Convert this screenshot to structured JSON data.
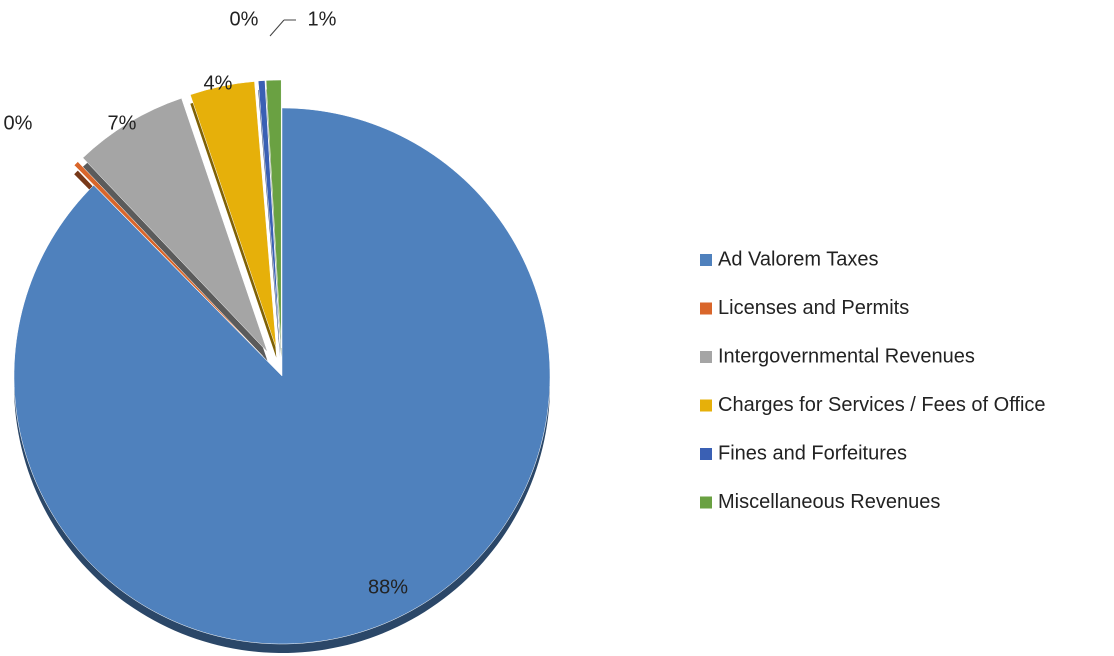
{
  "chart_data": {
    "type": "pie",
    "categories": [
      "Ad Valorem Taxes",
      "Licenses and Permits",
      "Intergovernmental Revenues",
      "Charges for Services / Fees of Office",
      "Fines and Forfeitures",
      "Miscellaneous Revenues"
    ],
    "values": [
      87.6,
      0.3,
      6.9,
      3.9,
      0.4,
      0.9
    ],
    "value_labels": [
      "88%",
      "0%",
      "7%",
      "4%",
      "0%",
      "1%"
    ],
    "colors": [
      "#4f81bd",
      "#d9662b",
      "#a5a5a5",
      "#e6b00a",
      "#3a60b4",
      "#6aa142"
    ],
    "legend": "right"
  }
}
